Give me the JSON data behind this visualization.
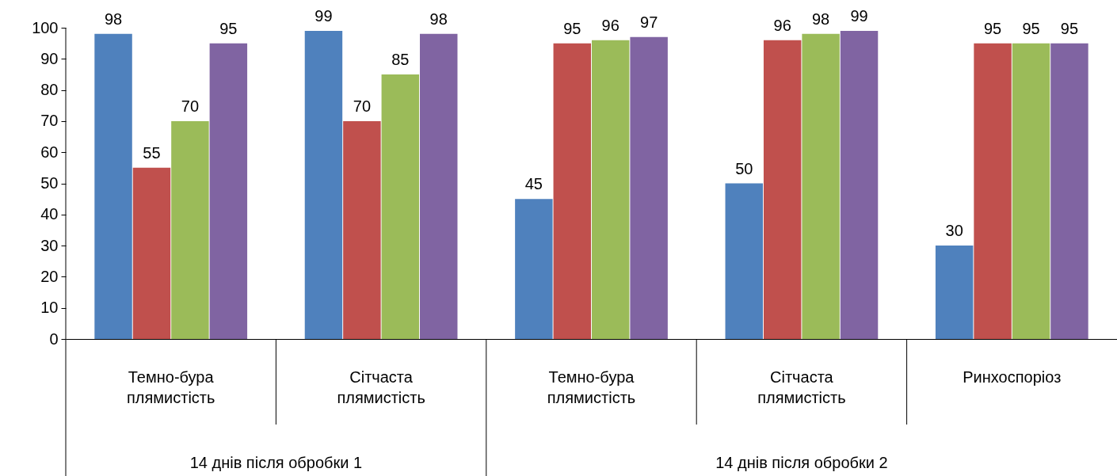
{
  "chart_data": {
    "type": "bar",
    "categories": [
      "Темно-бура плямистість",
      "Сітчаста плямистість",
      "Темно-бура плямистість",
      "Сітчаста плямистість",
      "Ринхоспоріоз"
    ],
    "series": [
      {
        "color": "#4f81bd",
        "values": [
          98,
          99,
          45,
          50,
          30
        ]
      },
      {
        "color": "#c0504d",
        "values": [
          55,
          70,
          95,
          96,
          95
        ]
      },
      {
        "color": "#9bbb59",
        "values": [
          70,
          85,
          96,
          98,
          95
        ]
      },
      {
        "color": "#8064a2",
        "values": [
          95,
          98,
          97,
          99,
          95
        ]
      }
    ],
    "ylim": [
      0,
      100
    ],
    "yticks": [
      0,
      10,
      20,
      30,
      40,
      50,
      60,
      70,
      80,
      90,
      100
    ],
    "data_labels": true,
    "grid": false,
    "legend": false,
    "annotations": [
      "14 днів після обробки 1",
      "14 днів після обробки 2"
    ]
  }
}
